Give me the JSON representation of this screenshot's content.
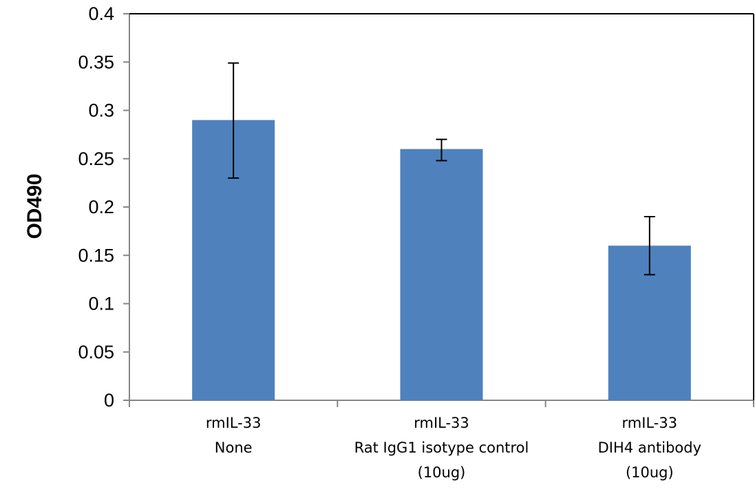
{
  "chart_data": {
    "type": "bar",
    "categories": [
      [
        "rmIL-33",
        "None"
      ],
      [
        "rmIL-33",
        "Rat IgG1 isotype control",
        "(10ug)"
      ],
      [
        "rmIL-33",
        "DIH4 antibody",
        "(10ug)"
      ]
    ],
    "values": [
      0.29,
      0.26,
      0.16
    ],
    "error_low": [
      0.23,
      0.248,
      0.13
    ],
    "error_high": [
      0.349,
      0.27,
      0.19
    ],
    "ylabel": "OD490",
    "xlabel": "",
    "title": "",
    "ylim": [
      0,
      0.4
    ],
    "yticks": [
      {
        "value": 0,
        "label": "0"
      },
      {
        "value": 0.05,
        "label": "0.05"
      },
      {
        "value": 0.1,
        "label": "0.1"
      },
      {
        "value": 0.15,
        "label": "0.15"
      },
      {
        "value": 0.2,
        "label": "0.2"
      },
      {
        "value": 0.25,
        "label": "0.25"
      },
      {
        "value": 0.3,
        "label": "0.3"
      },
      {
        "value": 0.35,
        "label": "0.35"
      },
      {
        "value": 0.4,
        "label": "0.4"
      }
    ],
    "bar_color": "#4f81bd",
    "grid": false,
    "legend": "none"
  }
}
